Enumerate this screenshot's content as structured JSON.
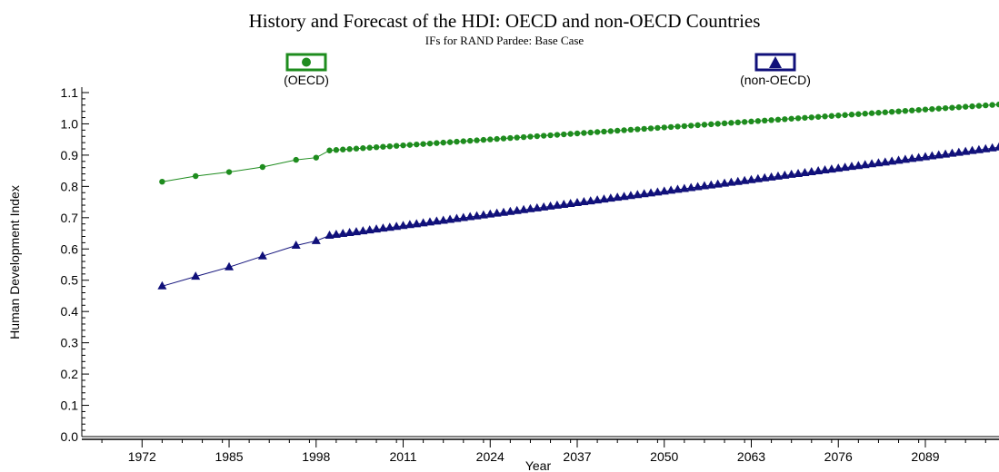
{
  "chart_data": {
    "type": "line",
    "title": "History and Forecast of the HDI: OECD and non-OECD Countries",
    "subtitle": "IFs for RAND Pardee:  Base Case",
    "xlabel": "Year",
    "ylabel": "Human Development Index",
    "x_ticks": [
      "1972",
      "1985",
      "1998",
      "2011",
      "2024",
      "2037",
      "2050",
      "2063",
      "2076",
      "2089"
    ],
    "y_ticks": [
      "0.0",
      "0.1",
      "0.2",
      "0.3",
      "0.4",
      "0.5",
      "0.6",
      "0.7",
      "0.8",
      "0.9",
      "1.0",
      "1.1"
    ],
    "xlim": [
      1963,
      2100
    ],
    "ylim": [
      0,
      1.1
    ],
    "legend_placement": "top",
    "series": [
      {
        "name": "(OECD)",
        "color": "#1e8c1e",
        "marker": "circle",
        "historical": [
          [
            1975,
            0.815
          ],
          [
            1980,
            0.833
          ],
          [
            1985,
            0.846
          ],
          [
            1990,
            0.862
          ],
          [
            1995,
            0.885
          ],
          [
            1998,
            0.892
          ]
        ],
        "forecast_start": [
          2000,
          0.915
        ],
        "forecast_end": [
          2100,
          1.062
        ]
      },
      {
        "name": "(non-OECD)",
        "color": "#10107a",
        "marker": "triangle",
        "historical": [
          [
            1975,
            0.481
          ],
          [
            1980,
            0.512
          ],
          [
            1985,
            0.542
          ],
          [
            1990,
            0.577
          ],
          [
            1995,
            0.611
          ],
          [
            1998,
            0.626
          ]
        ],
        "forecast_start": [
          2000,
          0.643
        ],
        "forecast_end": [
          2100,
          0.925
        ]
      }
    ]
  }
}
